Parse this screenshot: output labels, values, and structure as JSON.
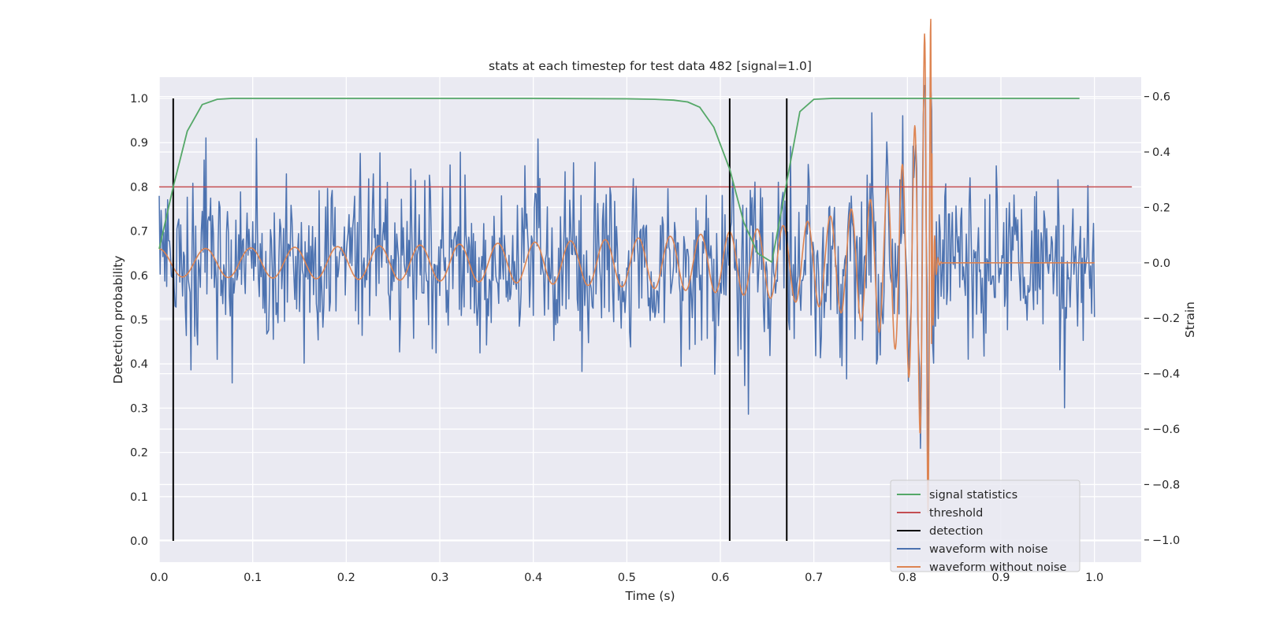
{
  "chart_data": {
    "type": "line",
    "title": "stats at each timestep for test data 482 [signal=1.0]",
    "xlabel": "Time (s)",
    "ylabel": "Detection probability",
    "y2label": "Strain",
    "xlim": [
      0.0,
      1.05
    ],
    "ylim": [
      -0.048,
      1.048
    ],
    "y2lim": [
      -1.08,
      0.67
    ],
    "xticks": [
      "0.0",
      "0.1",
      "0.2",
      "0.3",
      "0.4",
      "0.5",
      "0.6",
      "0.7",
      "0.8",
      "0.9",
      "1.0"
    ],
    "yticks": [
      "0.0",
      "0.1",
      "0.2",
      "0.3",
      "0.4",
      "0.5",
      "0.6",
      "0.7",
      "0.8",
      "0.9",
      "1.0"
    ],
    "y2ticks": [
      "−1.0",
      "−0.8",
      "−0.6",
      "−0.4",
      "−0.2",
      "0.0",
      "0.2",
      "0.4",
      "0.6"
    ],
    "grid": true,
    "legend_position": "bottom-right",
    "legend": [
      "signal statistics",
      "threshold",
      "detection",
      "waveform with noise",
      "waveform without noise"
    ],
    "colors": {
      "signal_statistics": "#55a868",
      "threshold": "#c44e52",
      "detection": "#000000",
      "waveform_with_noise": "#4c72b0",
      "waveform_without_noise": "#dd8452",
      "axes_background": "#eaeaf2",
      "grid": "#ffffff"
    },
    "signal_statistics": {
      "x": [
        0.0,
        0.015,
        0.03,
        0.046,
        0.062,
        0.078,
        0.1,
        0.2,
        0.3,
        0.4,
        0.5,
        0.53,
        0.55,
        0.565,
        0.578,
        0.593,
        0.61,
        0.625,
        0.64,
        0.655,
        0.67,
        0.685,
        0.7,
        0.72,
        0.8,
        0.9,
        0.984
      ],
      "y": [
        0.66,
        0.8,
        0.926,
        0.986,
        0.998,
        1.0,
        1.0,
        1.0,
        1.0,
        1.0,
        0.999,
        0.998,
        0.996,
        0.992,
        0.98,
        0.935,
        0.84,
        0.72,
        0.65,
        0.63,
        0.8,
        0.97,
        0.998,
        1.0,
        1.0,
        1.0,
        1.0
      ]
    },
    "threshold": {
      "x": [
        0.0,
        1.04
      ],
      "y": [
        0.8,
        0.8
      ]
    },
    "detection": {
      "x": [
        0.015,
        0.61,
        0.671
      ],
      "y_range": [
        0.0,
        1.0
      ]
    },
    "waveform_with_noise": {
      "description_units": "strain vs time (s)",
      "x_range": [
        0.0,
        1.0
      ],
      "samples": 1000,
      "noise_amplitude": 0.15,
      "seed": 482
    },
    "waveform_without_noise": {
      "x_range": [
        0.0,
        1.0
      ],
      "merger_time": 0.826,
      "start_amplitude": 0.05,
      "start_frequency_hz": 20
    }
  }
}
